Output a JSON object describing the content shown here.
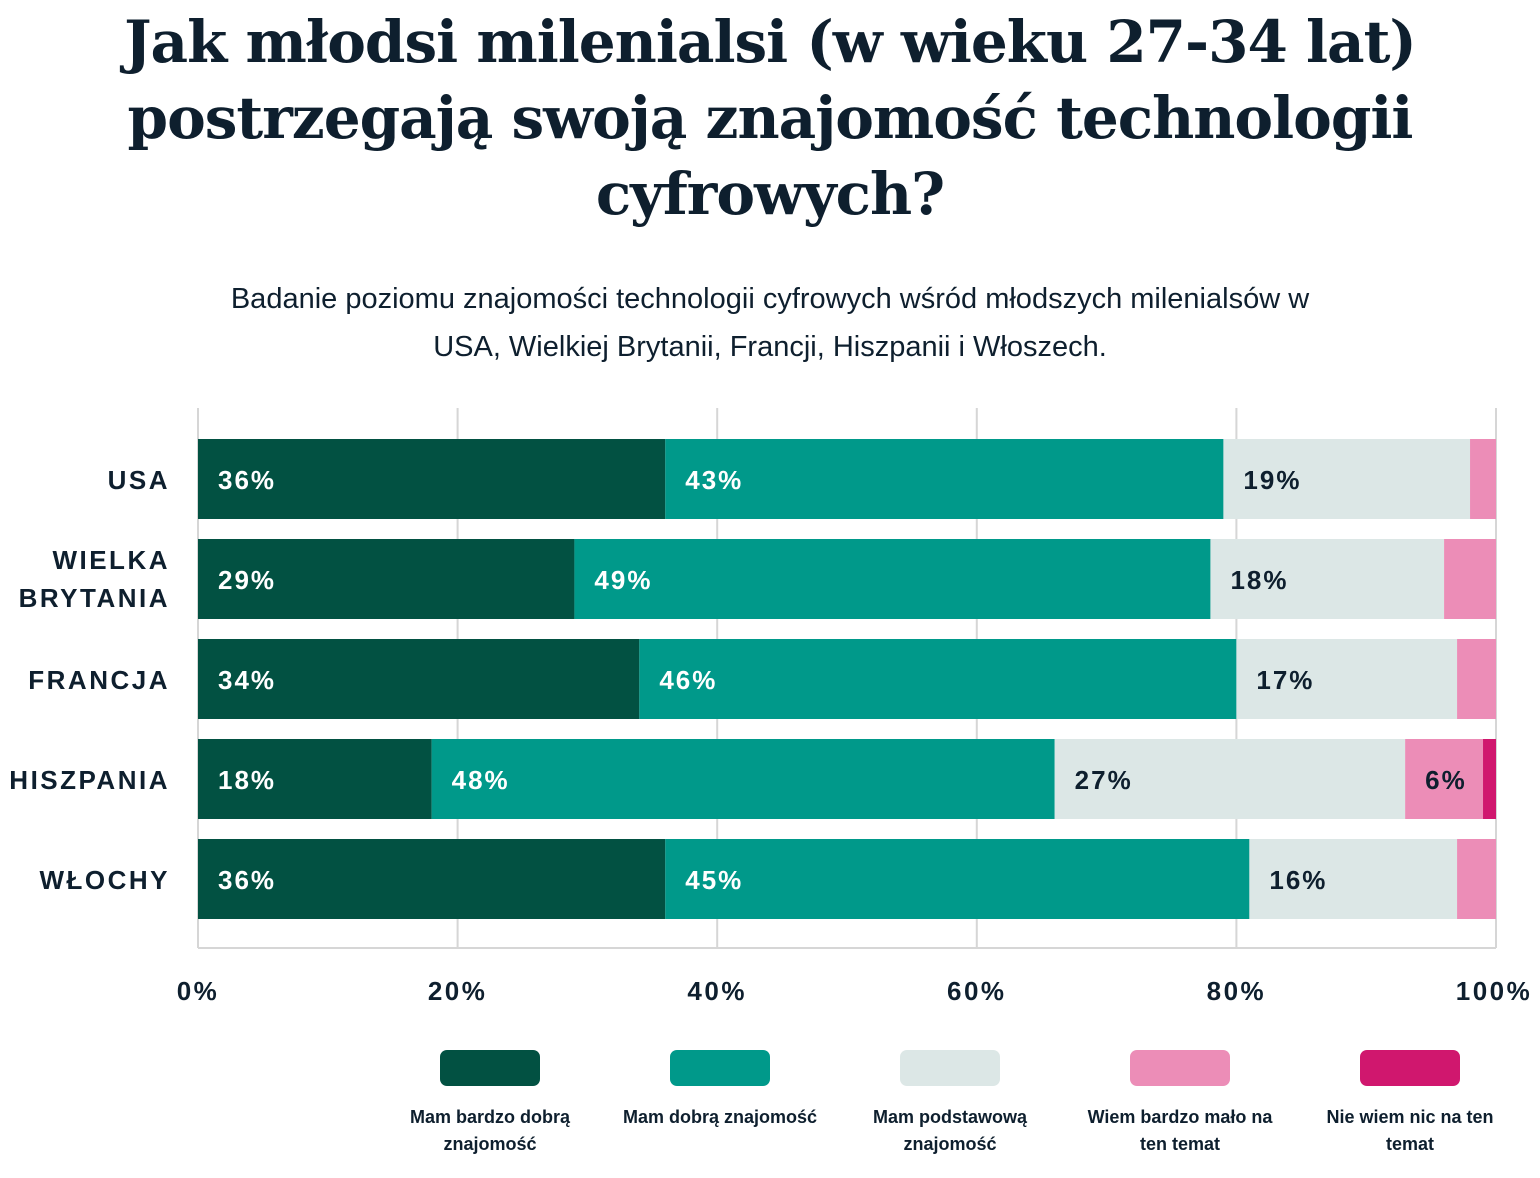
{
  "title": "Jak młodsi milenialsi (w wieku 27-34 lat) postrzegają swoją znajomość technologii cyfrowych?",
  "subtitle": "Badanie poziomu znajomości technologii cyfrowych wśród młodszych milenialsów w USA, Wielkiej Brytanii, Francji, Hiszpanii i Włoszech.",
  "chart_data": {
    "type": "bar",
    "orientation": "horizontal",
    "stacked": true,
    "categories": [
      "USA",
      "WIELKA BRYTANIA",
      "FRANCJA",
      "HISZPANIA",
      "WŁOCHY"
    ],
    "series": [
      {
        "name": "Mam bardzo dobrą znajomość",
        "color": "#025142",
        "values": [
          36,
          29,
          34,
          18,
          36
        ],
        "labels": [
          "36%",
          "29%",
          "34%",
          "18%",
          "36%"
        ]
      },
      {
        "name": "Mam dobrą znajomość",
        "color": "#00998a",
        "values": [
          43,
          49,
          46,
          48,
          45
        ],
        "labels": [
          "43%",
          "49%",
          "46%",
          "48%",
          "45%"
        ]
      },
      {
        "name": "Mam podstawową znajomość",
        "color": "#dce7e6",
        "values": [
          19,
          18,
          17,
          27,
          16
        ],
        "labels": [
          "19%",
          "18%",
          "17%",
          "27%",
          "16%"
        ]
      },
      {
        "name": "Wiem bardzo mało na ten temat",
        "color": "#ec8db7",
        "values": [
          2,
          4,
          3,
          6,
          3
        ],
        "labels": [
          "",
          "",
          "",
          "6%",
          ""
        ]
      },
      {
        "name": "Nie wiem nic na ten temat",
        "color": "#d0176e",
        "values": [
          0,
          0,
          0,
          1,
          0
        ],
        "labels": [
          "",
          "",
          "",
          "",
          ""
        ]
      }
    ],
    "xlim": [
      0,
      100
    ],
    "xticks": [
      0,
      20,
      40,
      60,
      80,
      100
    ],
    "xtick_labels": [
      "0%",
      "20%",
      "40%",
      "60%",
      "80%",
      "100%"
    ],
    "grid": true,
    "legend_position": "bottom"
  }
}
